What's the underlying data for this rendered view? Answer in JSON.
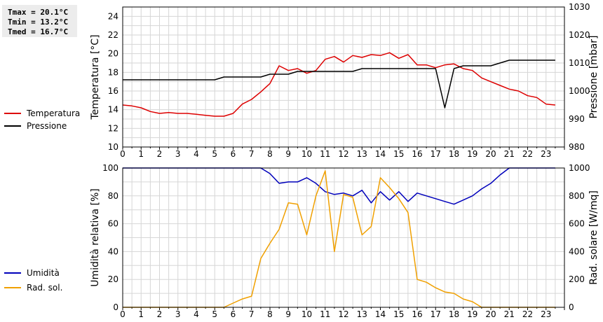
{
  "stats": {
    "tmax": "Tmax = 20.1°C",
    "tmin": "Tmin = 13.2°C",
    "tmed": "Tmed = 16.7°C"
  },
  "chart_data": [
    {
      "type": "line",
      "x_ticks": [
        "0",
        "1",
        "2",
        "3",
        "4",
        "5",
        "6",
        "7",
        "8",
        "9",
        "10",
        "11",
        "12",
        "13",
        "14",
        "15",
        "16",
        "17",
        "18",
        "19",
        "20",
        "21",
        "22",
        "23"
      ],
      "xlim": [
        0,
        24
      ],
      "ylabel_left": "Temperatura [°C]",
      "ylabel_right": "Pressione [mbar]",
      "ylim_left": [
        10,
        25
      ],
      "yticks_left": [
        10,
        12,
        14,
        16,
        18,
        20,
        22,
        24
      ],
      "ylim_right": [
        980,
        1030
      ],
      "yticks_right": [
        980,
        990,
        1000,
        1010,
        1020,
        1030
      ],
      "grid": true,
      "legend_position": "left",
      "series": [
        {
          "name": "Temperatura",
          "color": "#dd0000",
          "axis": "left",
          "x": [
            0,
            0.5,
            1,
            1.5,
            2,
            2.5,
            3,
            3.5,
            4,
            4.5,
            5,
            5.5,
            6,
            6.5,
            7,
            7.5,
            8,
            8.5,
            9,
            9.5,
            10,
            10.5,
            11,
            11.5,
            12,
            12.5,
            13,
            13.5,
            14,
            14.5,
            15,
            15.5,
            16,
            16.5,
            17,
            17.5,
            18,
            18.5,
            19,
            19.5,
            20,
            20.5,
            21,
            21.5,
            22,
            22.5,
            23,
            23.5
          ],
          "y": [
            14.5,
            14.4,
            14.2,
            13.8,
            13.6,
            13.7,
            13.6,
            13.6,
            13.5,
            13.4,
            13.3,
            13.3,
            13.6,
            14.6,
            15.1,
            15.9,
            16.8,
            18.7,
            18.2,
            18.4,
            17.9,
            18.2,
            19.4,
            19.7,
            19.1,
            19.8,
            19.6,
            19.9,
            19.8,
            20.1,
            19.5,
            19.9,
            18.8,
            18.8,
            18.5,
            18.8,
            18.9,
            18.4,
            18.2,
            17.4,
            17.0,
            16.6,
            16.2,
            16.0,
            15.5,
            15.3,
            14.6,
            14.5
          ]
        },
        {
          "name": "Pressione",
          "color": "#000000",
          "axis": "right",
          "x": [
            0,
            1,
            2,
            3,
            4,
            5,
            5.5,
            6,
            7,
            7.5,
            8,
            9,
            9.5,
            10,
            11,
            12,
            12.5,
            13,
            14,
            15,
            16,
            17,
            17.5,
            18,
            18.5,
            19,
            20,
            21,
            22,
            23,
            23.5
          ],
          "y": [
            1004,
            1004,
            1004,
            1004,
            1004,
            1004,
            1005,
            1005,
            1005,
            1005,
            1006,
            1006,
            1007,
            1007,
            1007,
            1007,
            1007,
            1008,
            1008,
            1008,
            1008,
            1008,
            994,
            1008,
            1009,
            1009,
            1009,
            1011,
            1011,
            1011,
            1011
          ]
        }
      ]
    },
    {
      "type": "line",
      "x_ticks": [
        "0",
        "1",
        "2",
        "3",
        "4",
        "5",
        "6",
        "7",
        "8",
        "9",
        "10",
        "11",
        "12",
        "13",
        "14",
        "15",
        "16",
        "17",
        "18",
        "19",
        "20",
        "21",
        "22",
        "23"
      ],
      "xlim": [
        0,
        24
      ],
      "ylabel_left": "Umidità relativa [%]",
      "ylabel_right": "Rad. solare [W/mq]",
      "ylim_left": [
        0,
        100
      ],
      "yticks_left": [
        0,
        20,
        40,
        60,
        80,
        100
      ],
      "ylim_right": [
        0,
        1000
      ],
      "yticks_right": [
        0,
        200,
        400,
        600,
        800,
        1000
      ],
      "grid": true,
      "legend_position": "left",
      "series": [
        {
          "name": "Umidità",
          "color": "#0000bb",
          "axis": "left",
          "x": [
            0,
            1,
            2,
            3,
            4,
            5,
            6,
            7,
            7.5,
            8,
            8.5,
            9,
            9.5,
            10,
            10.5,
            11,
            11.5,
            12,
            12.5,
            13,
            13.5,
            14,
            14.5,
            15,
            15.5,
            16,
            16.5,
            17,
            17.5,
            18,
            18.5,
            19,
            19.5,
            20,
            20.5,
            21,
            22,
            23,
            23.5
          ],
          "y": [
            100,
            100,
            100,
            100,
            100,
            100,
            100,
            100,
            100,
            96,
            89,
            90,
            90,
            93,
            89,
            83,
            81,
            82,
            80,
            84,
            75,
            83,
            77,
            83,
            76,
            82,
            80,
            78,
            76,
            74,
            77,
            80,
            85,
            89,
            95,
            100,
            100,
            100,
            100
          ]
        },
        {
          "name": "Rad. sol.",
          "color": "#f0a000",
          "axis": "right",
          "x": [
            0,
            1,
            2,
            3,
            4,
            5,
            5.5,
            6,
            6.5,
            7,
            7.5,
            8,
            8.5,
            9,
            9.5,
            10,
            10.5,
            11,
            11.5,
            12,
            12.5,
            13,
            13.5,
            14,
            14.5,
            15,
            15.5,
            16,
            16.5,
            17,
            17.5,
            18,
            18.5,
            19,
            19.5,
            20,
            21,
            22,
            23,
            23.5
          ],
          "y": [
            0,
            0,
            0,
            0,
            0,
            0,
            0,
            30,
            60,
            80,
            350,
            460,
            560,
            750,
            740,
            520,
            800,
            980,
            400,
            810,
            790,
            520,
            580,
            930,
            860,
            780,
            680,
            200,
            180,
            140,
            110,
            100,
            60,
            40,
            0,
            0,
            0,
            0,
            0,
            0
          ]
        }
      ]
    }
  ]
}
